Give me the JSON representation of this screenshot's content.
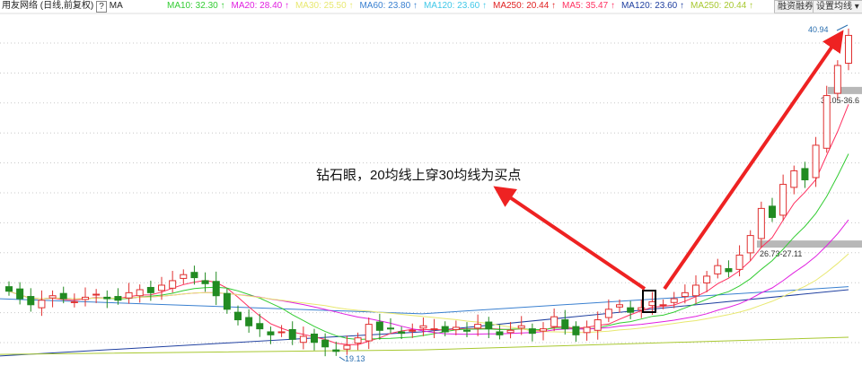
{
  "header": {
    "title": "用友网络 (日线,前复权)",
    "help": "?",
    "indicator": "MA",
    "legend": [
      {
        "label": "MA10: 32.30 ↑",
        "color": "#33cc33"
      },
      {
        "label": "MA20: 28.40 ↑",
        "color": "#e020e0"
      },
      {
        "label": "MA30: 25.50 ↑",
        "color": "#e8e870"
      },
      {
        "label": "MA60: 23.80 ↑",
        "color": "#3a80d0"
      },
      {
        "label": "MA120: 23.60 ↑",
        "color": "#40c8e8"
      },
      {
        "label": "MA250: 20.44 ↑",
        "color": "#e02020"
      },
      {
        "label": "MA5: 35.47 ↑",
        "color": "#ff3060"
      },
      {
        "label": "MA120: 23.60 ↑",
        "color": "#2040a0"
      },
      {
        "label": "MA250: 20.44 ↑",
        "color": "#a8c830"
      }
    ],
    "buttons": {
      "margin": "融资融券",
      "settings": "设置均线 ▾"
    }
  },
  "annotation": "钻石眼，20均线上穿30均线为买点",
  "chart_data": {
    "type": "candlestick",
    "price_range": [
      19.13,
      40.94
    ],
    "high_label": "40.94",
    "low_label": "19.13",
    "zones": [
      {
        "label": "36.05-36.6",
        "low": 36.05,
        "high": 36.6
      },
      {
        "label": "26.73-27.11",
        "low": 26.73,
        "high": 27.11
      }
    ],
    "grid": true,
    "colors": {
      "up": "#e03030",
      "down": "#228b22",
      "arrow": "#ee2222"
    },
    "close": [
      23.5,
      23.0,
      22.6,
      22.9,
      23.2,
      23.0,
      22.8,
      23.1,
      23.3,
      23.0,
      22.9,
      23.4,
      23.6,
      23.4,
      23.9,
      24.2,
      24.6,
      24.4,
      24.0,
      23.2,
      22.3,
      21.6,
      21.2,
      21.0,
      20.6,
      20.8,
      20.3,
      20.5,
      20.1,
      19.8,
      19.5,
      19.9,
      20.4,
      21.3,
      20.9,
      21.0,
      20.7,
      20.9,
      21.2,
      21.0,
      20.8,
      21.1,
      20.9,
      21.3,
      21.0,
      20.6,
      20.9,
      21.2,
      20.7,
      21.0,
      21.8,
      21.0,
      20.6,
      21.1,
      21.6,
      22.3,
      22.6,
      22.1,
      22.4,
      22.8,
      22.6,
      23.0,
      23.4,
      23.9,
      24.5,
      25.2,
      24.8,
      25.9,
      27.2,
      29.0,
      28.4,
      30.6,
      31.5,
      30.9,
      33.2,
      36.5,
      38.5,
      40.5
    ],
    "long_ma": [
      {
        "name": "MA60",
        "color": "#3a80d0",
        "start": 23.0,
        "mid": 22.0,
        "end": 23.8
      },
      {
        "name": "MA120",
        "color": "#2040a0",
        "start": 19.2,
        "mid": 20.8,
        "end": 23.6
      },
      {
        "name": "MA250",
        "color": "#a8c830",
        "start": 19.3,
        "mid": 19.6,
        "end": 20.44
      }
    ]
  }
}
